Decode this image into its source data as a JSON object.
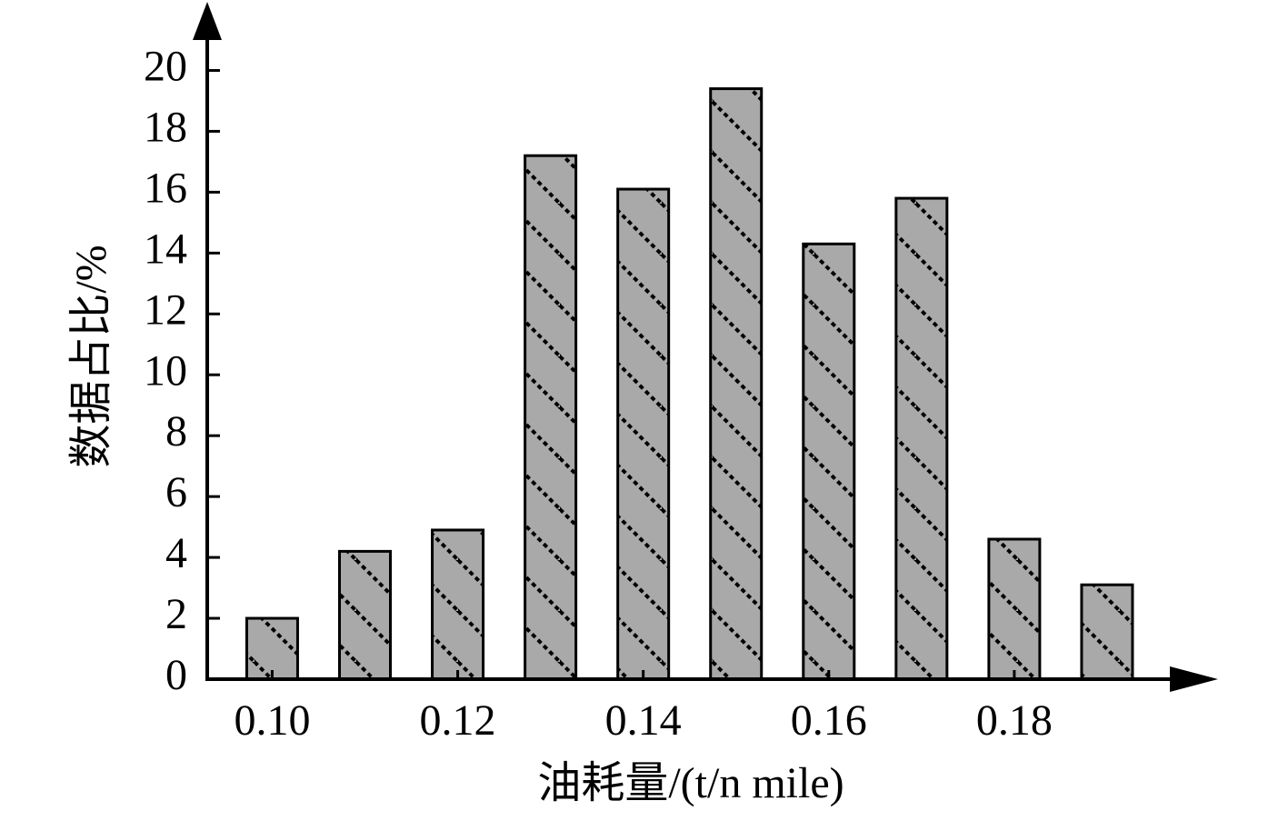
{
  "chart_data": {
    "type": "bar",
    "x_label": "油耗量/(t/n mile)",
    "y_label": "数据占比/%",
    "x": [
      0.1,
      0.11,
      0.12,
      0.13,
      0.14,
      0.15,
      0.16,
      0.17,
      0.18,
      0.19
    ],
    "values": [
      2.0,
      4.2,
      4.9,
      17.2,
      16.1,
      19.4,
      14.3,
      15.8,
      4.6,
      3.1
    ],
    "color": "#a9a9a9",
    "xlim": [
      0.093,
      0.2
    ],
    "xticks": [
      {
        "value": 0.1,
        "label": "0.10"
      },
      {
        "value": 0.12,
        "label": "0.12"
      },
      {
        "value": 0.14,
        "label": "0.14"
      },
      {
        "value": 0.16,
        "label": "0.16"
      },
      {
        "value": 0.18,
        "label": "0.18"
      }
    ],
    "ylim": [
      0,
      21
    ],
    "yticks": [
      0,
      2,
      4,
      6,
      8,
      10,
      12,
      14,
      16,
      18,
      20
    ],
    "grid": false
  }
}
